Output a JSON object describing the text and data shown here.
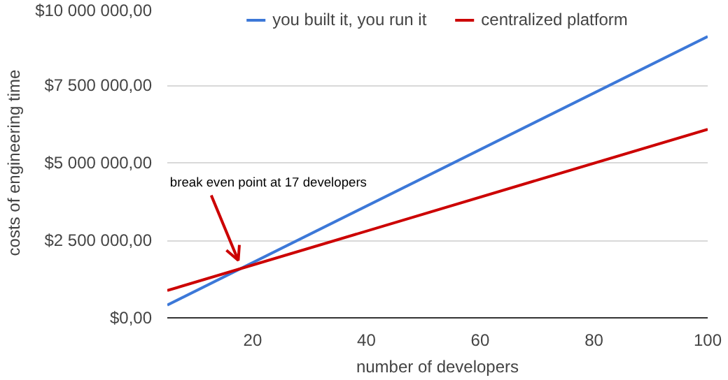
{
  "chart_data": {
    "type": "line",
    "x": [
      5,
      100
    ],
    "series": [
      {
        "name": "you built it, you run it",
        "color": "#3c78d8",
        "values": [
          410000,
          9070000
        ]
      },
      {
        "name": "centralized platform",
        "color": "#cc0000",
        "values": [
          880000,
          6080000
        ]
      }
    ],
    "xlabel": "number of developers",
    "ylabel": "costs of engineering time",
    "xlim": [
      5,
      100
    ],
    "xticks": [
      20,
      40,
      60,
      80,
      100
    ],
    "ylim": [
      0,
      10000000
    ],
    "yticks": [
      {
        "value": 0,
        "label": "$0,00"
      },
      {
        "value": 2500000,
        "label": "$2 500 000,00"
      },
      {
        "value": 5000000,
        "label": "$5 000 000,00"
      },
      {
        "value": 7500000,
        "label": "$7 500 000,00"
      },
      {
        "value": 10000000,
        "label": "$10 000 000,00"
      }
    ],
    "annotations": [
      {
        "text": "break even point at 17 developers",
        "x": 17,
        "y": 1650000
      }
    ],
    "grid": "y",
    "legend": "top",
    "marker": "none",
    "line_style": "solid"
  }
}
